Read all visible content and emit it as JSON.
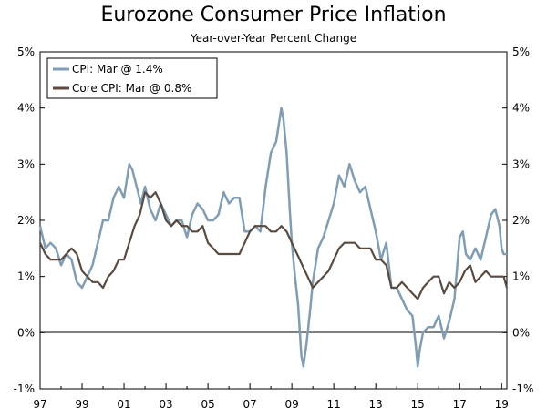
{
  "chart_data": {
    "type": "line",
    "title": "Eurozone Consumer Price Inflation",
    "subtitle": "Year-over-Year Percent Change",
    "xlabel": "",
    "ylabel": "",
    "ylim": [
      -1,
      5
    ],
    "xlim": [
      1997.0,
      2019.25
    ],
    "y_ticks": [
      "-1%",
      "0%",
      "1%",
      "2%",
      "3%",
      "4%",
      "5%"
    ],
    "x_ticks": [
      "97",
      "99",
      "01",
      "03",
      "05",
      "07",
      "09",
      "11",
      "13",
      "15",
      "17",
      "19"
    ],
    "grid": false,
    "zero_line": true,
    "legend_position": "top-left",
    "series": [
      {
        "name": "CPI: Mar @ 1.4%",
        "color": "#7f9db5",
        "x": [
          1997.0,
          1997.25,
          1997.5,
          1997.75,
          1998.0,
          1998.25,
          1998.5,
          1998.75,
          1999.0,
          1999.25,
          1999.5,
          1999.75,
          2000.0,
          2000.25,
          2000.5,
          2000.75,
          2001.0,
          2001.25,
          2001.4,
          2001.6,
          2001.8,
          2002.0,
          2002.25,
          2002.5,
          2002.75,
          2003.0,
          2003.25,
          2003.5,
          2003.75,
          2004.0,
          2004.25,
          2004.5,
          2004.75,
          2005.0,
          2005.25,
          2005.5,
          2005.75,
          2006.0,
          2006.25,
          2006.5,
          2006.75,
          2007.0,
          2007.25,
          2007.5,
          2007.75,
          2008.0,
          2008.25,
          2008.5,
          2008.6,
          2008.75,
          2008.9,
          2009.0,
          2009.15,
          2009.3,
          2009.45,
          2009.55,
          2009.7,
          2009.9,
          2010.0,
          2010.25,
          2010.5,
          2010.75,
          2011.0,
          2011.25,
          2011.5,
          2011.75,
          2012.0,
          2012.25,
          2012.5,
          2012.75,
          2013.0,
          2013.25,
          2013.5,
          2013.75,
          2014.0,
          2014.25,
          2014.5,
          2014.75,
          2014.9,
          2015.0,
          2015.1,
          2015.25,
          2015.5,
          2015.75,
          2016.0,
          2016.25,
          2016.5,
          2016.75,
          2017.0,
          2017.15,
          2017.3,
          2017.5,
          2017.75,
          2018.0,
          2018.25,
          2018.5,
          2018.7,
          2018.9,
          2019.0,
          2019.1,
          2019.25
        ],
        "y": [
          1.9,
          1.5,
          1.6,
          1.5,
          1.2,
          1.4,
          1.3,
          0.9,
          0.8,
          1.0,
          1.2,
          1.6,
          2.0,
          2.0,
          2.4,
          2.6,
          2.4,
          3.0,
          2.9,
          2.6,
          2.3,
          2.6,
          2.2,
          2.0,
          2.3,
          2.1,
          1.9,
          2.0,
          2.0,
          1.7,
          2.1,
          2.3,
          2.2,
          2.0,
          2.0,
          2.1,
          2.5,
          2.3,
          2.4,
          2.4,
          1.8,
          1.8,
          1.9,
          1.8,
          2.6,
          3.2,
          3.4,
          4.0,
          3.8,
          3.2,
          2.2,
          1.6,
          1.0,
          0.5,
          -0.4,
          -0.6,
          -0.2,
          0.5,
          0.9,
          1.5,
          1.7,
          2.0,
          2.3,
          2.8,
          2.6,
          3.0,
          2.7,
          2.5,
          2.6,
          2.2,
          1.8,
          1.3,
          1.6,
          0.8,
          0.8,
          0.6,
          0.4,
          0.3,
          -0.2,
          -0.6,
          -0.3,
          0.0,
          0.1,
          0.1,
          0.3,
          -0.1,
          0.2,
          0.6,
          1.7,
          1.8,
          1.4,
          1.3,
          1.5,
          1.3,
          1.7,
          2.1,
          2.2,
          1.9,
          1.5,
          1.4,
          1.4
        ]
      },
      {
        "name": "Core CPI: Mar @ 0.8%",
        "color": "#5a4a3f",
        "x": [
          1997.0,
          1997.25,
          1997.5,
          1997.75,
          1998.0,
          1998.25,
          1998.5,
          1998.75,
          1999.0,
          1999.25,
          1999.5,
          1999.75,
          2000.0,
          2000.25,
          2000.5,
          2000.75,
          2001.0,
          2001.25,
          2001.5,
          2001.75,
          2002.0,
          2002.25,
          2002.5,
          2002.75,
          2003.0,
          2003.25,
          2003.5,
          2003.75,
          2004.0,
          2004.25,
          2004.5,
          2004.75,
          2005.0,
          2005.25,
          2005.5,
          2005.75,
          2006.0,
          2006.25,
          2006.5,
          2006.75,
          2007.0,
          2007.25,
          2007.5,
          2007.75,
          2008.0,
          2008.25,
          2008.5,
          2008.75,
          2009.0,
          2009.25,
          2009.5,
          2009.75,
          2010.0,
          2010.25,
          2010.5,
          2010.75,
          2011.0,
          2011.25,
          2011.5,
          2011.75,
          2012.0,
          2012.25,
          2012.5,
          2012.75,
          2013.0,
          2013.25,
          2013.5,
          2013.75,
          2014.0,
          2014.25,
          2014.5,
          2014.75,
          2015.0,
          2015.25,
          2015.5,
          2015.75,
          2016.0,
          2016.25,
          2016.5,
          2016.75,
          2017.0,
          2017.25,
          2017.5,
          2017.75,
          2018.0,
          2018.25,
          2018.5,
          2018.75,
          2019.0,
          2019.1,
          2019.25
        ],
        "y": [
          1.6,
          1.4,
          1.3,
          1.3,
          1.3,
          1.4,
          1.5,
          1.4,
          1.1,
          1.0,
          0.9,
          0.9,
          0.8,
          1.0,
          1.1,
          1.3,
          1.3,
          1.6,
          1.9,
          2.1,
          2.5,
          2.4,
          2.5,
          2.3,
          2.0,
          1.9,
          2.0,
          1.9,
          1.9,
          1.8,
          1.8,
          1.9,
          1.6,
          1.5,
          1.4,
          1.4,
          1.4,
          1.4,
          1.4,
          1.6,
          1.8,
          1.9,
          1.9,
          1.9,
          1.8,
          1.8,
          1.9,
          1.8,
          1.6,
          1.4,
          1.2,
          1.0,
          0.8,
          0.9,
          1.0,
          1.1,
          1.3,
          1.5,
          1.6,
          1.6,
          1.6,
          1.5,
          1.5,
          1.5,
          1.3,
          1.3,
          1.2,
          0.8,
          0.8,
          0.9,
          0.8,
          0.7,
          0.6,
          0.8,
          0.9,
          1.0,
          1.0,
          0.7,
          0.9,
          0.8,
          0.9,
          1.1,
          1.2,
          0.9,
          1.0,
          1.1,
          1.0,
          1.0,
          1.0,
          1.0,
          0.8
        ]
      }
    ]
  }
}
